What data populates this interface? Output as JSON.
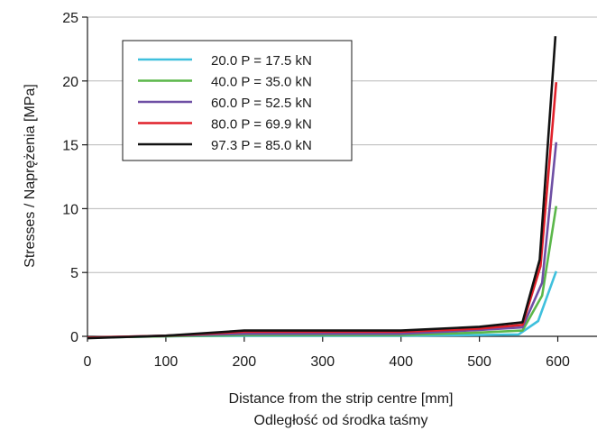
{
  "chart_data": {
    "type": "line",
    "xlabel": "Distance from the strip centre [mm]",
    "xlabel_secondary": "Odległość od środka taśmy",
    "ylabel": "Stresses / Naprężenia [MPa]",
    "xlim": [
      0,
      650
    ],
    "ylim": [
      0,
      25
    ],
    "x_ticks": [
      "0",
      "100",
      "200",
      "300",
      "400",
      "500",
      "600"
    ],
    "y_ticks": [
      "0",
      "5",
      "10",
      "15",
      "20",
      "25"
    ],
    "grid": "horizontal",
    "legend_position": "top-left",
    "series": [
      {
        "name": "20.0 P = 17.5 kN",
        "color": "#3fc0dd",
        "points": [
          [
            0,
            -0.1
          ],
          [
            100,
            0
          ],
          [
            200,
            0.05
          ],
          [
            300,
            0.05
          ],
          [
            400,
            0.05
          ],
          [
            500,
            0.1
          ],
          [
            550,
            0.15
          ],
          [
            575,
            1.2
          ],
          [
            598,
            5.1
          ]
        ]
      },
      {
        "name": "40.0 P = 35.0 kN",
        "color": "#5bb74a",
        "points": [
          [
            0,
            -0.1
          ],
          [
            100,
            0
          ],
          [
            200,
            0.1
          ],
          [
            300,
            0.1
          ],
          [
            400,
            0.1
          ],
          [
            500,
            0.3
          ],
          [
            555,
            0.45
          ],
          [
            580,
            3.2
          ],
          [
            598,
            10.2
          ]
        ]
      },
      {
        "name": "60.0 P = 52.5 kN",
        "color": "#6e4fa4",
        "points": [
          [
            0,
            -0.1
          ],
          [
            100,
            0.05
          ],
          [
            200,
            0.2
          ],
          [
            300,
            0.2
          ],
          [
            400,
            0.2
          ],
          [
            500,
            0.5
          ],
          [
            555,
            0.7
          ],
          [
            580,
            4.2
          ],
          [
            598,
            15.2
          ]
        ]
      },
      {
        "name": "80.0 P = 69.9 kN",
        "color": "#e0202a",
        "points": [
          [
            0,
            -0.1
          ],
          [
            100,
            0.05
          ],
          [
            200,
            0.35
          ],
          [
            300,
            0.35
          ],
          [
            400,
            0.35
          ],
          [
            500,
            0.6
          ],
          [
            555,
            0.9
          ],
          [
            578,
            5.5
          ],
          [
            598,
            19.9
          ]
        ]
      },
      {
        "name": "97.3 P = 85.0 kN",
        "color": "#111111",
        "points": [
          [
            0,
            -0.15
          ],
          [
            100,
            0.05
          ],
          [
            200,
            0.45
          ],
          [
            300,
            0.45
          ],
          [
            400,
            0.45
          ],
          [
            500,
            0.75
          ],
          [
            555,
            1.1
          ],
          [
            577,
            6.0
          ],
          [
            597,
            23.5
          ]
        ]
      }
    ]
  }
}
